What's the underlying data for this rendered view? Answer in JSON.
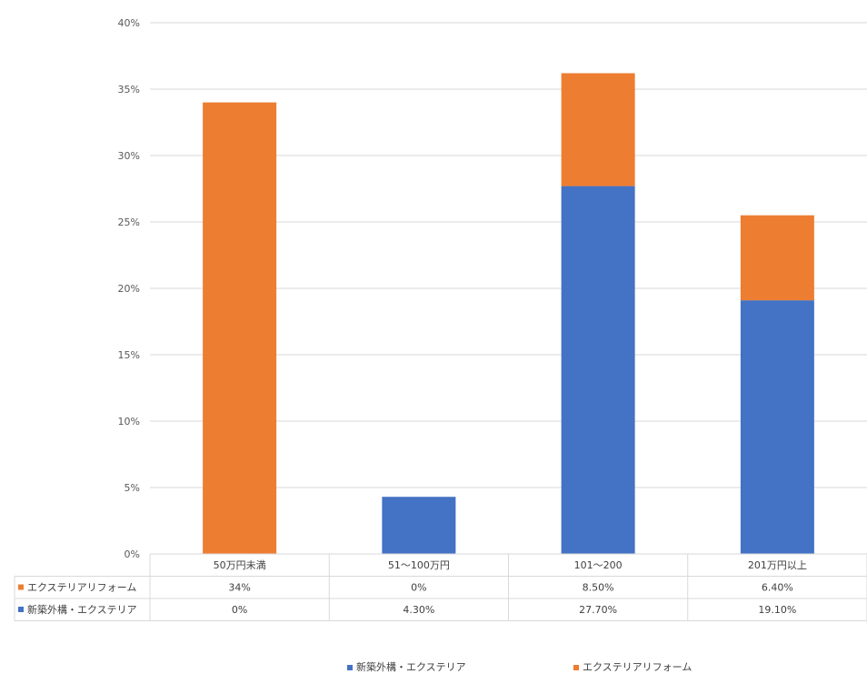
{
  "chart_data": {
    "type": "bar",
    "stacked": true,
    "categories": [
      "50万円未満",
      "51〜100万円",
      "101〜200",
      "201万円以上"
    ],
    "series": [
      {
        "name": "新築外構・エクステリア",
        "values": [
          0,
          4.3,
          27.7,
          19.1
        ],
        "labels": [
          "0%",
          "4.30%",
          "27.70%",
          "19.10%"
        ],
        "color": "#4472C4"
      },
      {
        "name": "エクステリアリフォーム",
        "values": [
          34,
          0,
          8.5,
          6.4
        ],
        "labels": [
          "34%",
          "0%",
          "8.50%",
          "6.40%"
        ],
        "color": "#ED7D31"
      }
    ],
    "ylim": [
      0,
      40
    ],
    "yticks": [
      "0%",
      "5%",
      "10%",
      "15%",
      "20%",
      "25%",
      "30%",
      "35%",
      "40%"
    ],
    "grid": true,
    "data_table": true,
    "legend_position": "bottom"
  }
}
